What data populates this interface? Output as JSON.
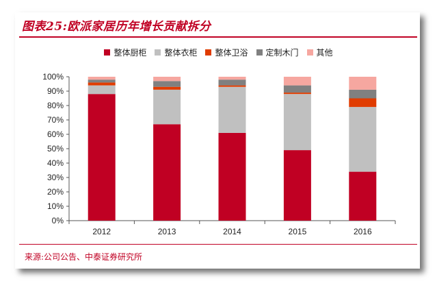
{
  "title": "图表25:欧派家居历年增长贡献拆分",
  "source": "来源:公司公告、中泰证券研究所",
  "chart_data": {
    "type": "bar",
    "stacked": true,
    "normalized": true,
    "categories": [
      "2012",
      "2013",
      "2014",
      "2015",
      "2016"
    ],
    "y_ticks": [
      "0%",
      "10%",
      "20%",
      "30%",
      "40%",
      "50%",
      "60%",
      "70%",
      "80%",
      "90%",
      "100%"
    ],
    "ylim": [
      0,
      100
    ],
    "legend_position": "top",
    "series": [
      {
        "name": "整体厨柜",
        "color": "#c00023",
        "values": [
          88,
          67,
          61,
          49,
          34
        ]
      },
      {
        "name": "整体衣柜",
        "color": "#c0c0c0",
        "values": [
          6,
          24,
          32,
          39,
          45
        ]
      },
      {
        "name": "整体卫浴",
        "color": "#e03c00",
        "values": [
          2,
          2,
          1,
          1,
          6
        ]
      },
      {
        "name": "定制木门",
        "color": "#808080",
        "values": [
          2,
          4,
          4,
          5,
          6
        ]
      },
      {
        "name": "其他",
        "color": "#f6a7a0",
        "values": [
          2,
          3,
          2,
          6,
          9
        ]
      }
    ]
  }
}
